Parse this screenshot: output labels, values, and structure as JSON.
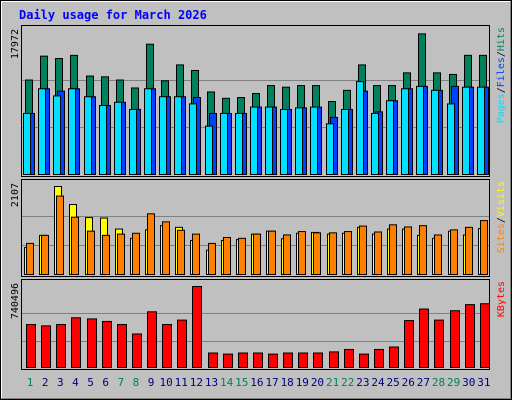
{
  "chart_data": {
    "title": "Daily usage for March 2026",
    "type": "bar",
    "days": [
      "1",
      "2",
      "3",
      "4",
      "5",
      "6",
      "7",
      "8",
      "9",
      "10",
      "11",
      "12",
      "13",
      "14",
      "15",
      "16",
      "17",
      "18",
      "19",
      "20",
      "21",
      "22",
      "23",
      "24",
      "25",
      "26",
      "27",
      "28",
      "29",
      "30",
      "31"
    ],
    "weekend_days": [
      "1",
      "7",
      "8",
      "14",
      "15",
      "21",
      "22",
      "28",
      "29"
    ],
    "colors": {
      "hits": "#00805c",
      "files": "#0040ff",
      "pages": "#00e0ff",
      "visits": "#ffff00",
      "sites": "#ff8000",
      "kbytes": "#ff0000",
      "title": "#0000ff",
      "weekday_label": "#000080",
      "weekend_label": "#00805c"
    },
    "panels": [
      {
        "id": "hits-panel",
        "max_label": "17972",
        "ymax": 17972,
        "legend": [
          {
            "text": "Pages",
            "color": "#00e0ff"
          },
          {
            "text": "/",
            "color": "#000000"
          },
          {
            "text": "Files",
            "color": "#0040ff"
          },
          {
            "text": "/",
            "color": "#000000"
          },
          {
            "text": "Hits",
            "color": "#00805c"
          }
        ],
        "series": [
          {
            "name": "Hits",
            "values": [
              12000,
              15000,
              14700,
              15100,
              12500,
              12400,
              12000,
              11000,
              16500,
              11900,
              13900,
              13200,
              10500,
              9700,
              9800,
              10300,
              11300,
              11100,
              11300,
              11300,
              9300,
              10700,
              13900,
              11300,
              11300,
              12900,
              17800,
              12900,
              12700,
              15100,
              15100
            ]
          },
          {
            "name": "Files",
            "values": [
              7800,
              10900,
              10600,
              10900,
              9900,
              8800,
              9200,
              8300,
              10900,
              9900,
              9900,
              9800,
              7800,
              7800,
              7800,
              8600,
              8600,
              8300,
              8500,
              8600,
              7300,
              8300,
              10600,
              8000,
              9400,
              10900,
              11200,
              10700,
              11200,
              11100,
              11100
            ]
          },
          {
            "name": "Pages",
            "values": [
              7800,
              10900,
              10000,
              10900,
              9900,
              8800,
              9200,
              8300,
              10900,
              9900,
              9900,
              9000,
              6200,
              7800,
              7800,
              8600,
              8600,
              8300,
              8500,
              8600,
              6500,
              8300,
              11800,
              7800,
              9400,
              10900,
              11200,
              10700,
              9000,
              11100,
              11100
            ]
          }
        ]
      },
      {
        "id": "visits-panel",
        "max_label": "2107",
        "ymax": 2107,
        "legend": [
          {
            "text": "Sites",
            "color": "#ff8000"
          },
          {
            "text": "/",
            "color": "#000000"
          },
          {
            "text": "Visits",
            "color": "#ffff00"
          }
        ],
        "series": [
          {
            "name": "Visits",
            "values": [
              660,
              950,
              2107,
              1680,
              1370,
              1360,
              1100,
              880,
              1080,
              1180,
              1140,
              830,
              600,
              830,
              850,
              980,
              1050,
              870,
              1000,
              1020,
              980,
              1000,
              1140,
              980,
              1100,
              1100,
              950,
              880,
              1050,
              960,
              1110
            ]
          },
          {
            "name": "Sites",
            "values": [
              760,
              950,
              1880,
              1380,
              1050,
              950,
              980,
              1000,
              1460,
              1270,
              1070,
              980,
              760,
              900,
              880,
              980,
              1050,
              960,
              1040,
              1010,
              1010,
              1040,
              1170,
              1030,
              1200,
              1150,
              1180,
              960,
              1080,
              1140,
              1300
            ]
          }
        ]
      },
      {
        "id": "kbytes-panel",
        "max_label": "740496",
        "ymax": 740496,
        "legend": [
          {
            "text": "KBytes",
            "color": "#ff0000"
          }
        ],
        "series": [
          {
            "name": "KBytes",
            "values": [
              397000,
              385000,
              397000,
              458000,
              448000,
              425000,
              397000,
              312000,
              512000,
              397000,
              437000,
              740496,
              140000,
              130000,
              140000,
              140000,
              130000,
              140000,
              140000,
              140000,
              150000,
              172000,
              130000,
              172000,
              194000,
              433000,
              537000,
              437000,
              522000,
              577000,
              585000
            ]
          }
        ]
      }
    ]
  }
}
